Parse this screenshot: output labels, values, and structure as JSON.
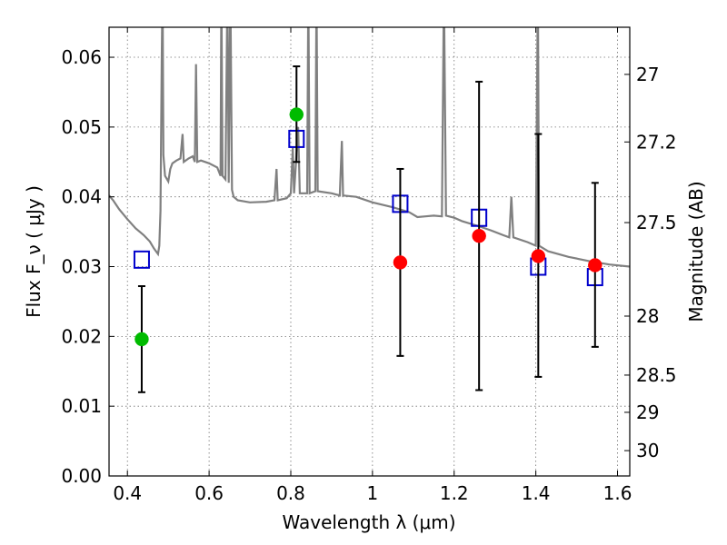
{
  "chart_data": {
    "type": "scatter",
    "title": "",
    "xlabel": "Wavelength  λ (μm)",
    "ylabel": "Flux  F_ν  ( μJy )",
    "ylabel_right": "Magnitude (AB)",
    "xlim": [
      0.355,
      1.63
    ],
    "ylim": [
      0.0,
      0.0643
    ],
    "grid": true,
    "x_ticks": [
      0.4,
      0.6,
      0.8,
      1.0,
      1.2,
      1.4,
      1.6
    ],
    "x_tick_labels": [
      "0.4",
      "0.6",
      "0.8",
      "1",
      "1.2",
      "1.4",
      "1.6"
    ],
    "y_ticks": [
      0.0,
      0.01,
      0.02,
      0.03,
      0.04,
      0.05,
      0.06
    ],
    "y_tick_labels": [
      "0.00",
      "0.01",
      "0.02",
      "0.03",
      "0.04",
      "0.05",
      "0.06"
    ],
    "right_ticks": [
      27,
      27.2,
      27.5,
      28,
      28.5,
      29,
      30
    ],
    "right_tick_labels": [
      "27",
      "27.2",
      "27.5",
      "28",
      "28.5",
      "29",
      "30"
    ],
    "model_spectrum": {
      "color": "#808080",
      "points": [
        [
          0.355,
          0.0402
        ],
        [
          0.365,
          0.0395
        ],
        [
          0.38,
          0.0382
        ],
        [
          0.4,
          0.0368
        ],
        [
          0.42,
          0.0355
        ],
        [
          0.44,
          0.0345
        ],
        [
          0.455,
          0.0336
        ],
        [
          0.465,
          0.0326
        ],
        [
          0.475,
          0.0318
        ],
        [
          0.478,
          0.033
        ],
        [
          0.481,
          0.038
        ],
        [
          0.484,
          0.06
        ],
        [
          0.486,
          0.07
        ],
        [
          0.488,
          0.046
        ],
        [
          0.492,
          0.043
        ],
        [
          0.5,
          0.0422
        ],
        [
          0.505,
          0.044
        ],
        [
          0.51,
          0.0448
        ],
        [
          0.52,
          0.0452
        ],
        [
          0.53,
          0.0455
        ],
        [
          0.535,
          0.049
        ],
        [
          0.538,
          0.045
        ],
        [
          0.55,
          0.0455
        ],
        [
          0.56,
          0.0458
        ],
        [
          0.565,
          0.045
        ],
        [
          0.568,
          0.059
        ],
        [
          0.571,
          0.045
        ],
        [
          0.58,
          0.0452
        ],
        [
          0.6,
          0.0448
        ],
        [
          0.62,
          0.0442
        ],
        [
          0.628,
          0.043
        ],
        [
          0.63,
          0.07
        ],
        [
          0.633,
          0.043
        ],
        [
          0.64,
          0.0425
        ],
        [
          0.645,
          0.07
        ],
        [
          0.648,
          0.042
        ],
        [
          0.652,
          0.07
        ],
        [
          0.656,
          0.041
        ],
        [
          0.66,
          0.04
        ],
        [
          0.67,
          0.0395
        ],
        [
          0.7,
          0.0392
        ],
        [
          0.74,
          0.0393
        ],
        [
          0.76,
          0.0395
        ],
        [
          0.765,
          0.044
        ],
        [
          0.768,
          0.0395
        ],
        [
          0.79,
          0.0398
        ],
        [
          0.8,
          0.0405
        ],
        [
          0.805,
          0.047
        ],
        [
          0.808,
          0.0405
        ],
        [
          0.818,
          0.05
        ],
        [
          0.822,
          0.0405
        ],
        [
          0.84,
          0.0405
        ],
        [
          0.843,
          0.07
        ],
        [
          0.846,
          0.0405
        ],
        [
          0.86,
          0.0408
        ],
        [
          0.863,
          0.07
        ],
        [
          0.866,
          0.0408
        ],
        [
          0.9,
          0.0405
        ],
        [
          0.92,
          0.0402
        ],
        [
          0.925,
          0.048
        ],
        [
          0.928,
          0.0402
        ],
        [
          0.96,
          0.04
        ],
        [
          1.0,
          0.0392
        ],
        [
          1.05,
          0.0385
        ],
        [
          1.09,
          0.0378
        ],
        [
          1.11,
          0.0371
        ],
        [
          1.13,
          0.0372
        ],
        [
          1.15,
          0.0373
        ],
        [
          1.17,
          0.0372
        ],
        [
          1.175,
          0.07
        ],
        [
          1.18,
          0.0373
        ],
        [
          1.2,
          0.037
        ],
        [
          1.22,
          0.0365
        ],
        [
          1.26,
          0.0358
        ],
        [
          1.29,
          0.0352
        ],
        [
          1.32,
          0.0345
        ],
        [
          1.335,
          0.0342
        ],
        [
          1.34,
          0.04
        ],
        [
          1.345,
          0.0342
        ],
        [
          1.38,
          0.0335
        ],
        [
          1.4,
          0.033
        ],
        [
          1.405,
          0.07
        ],
        [
          1.408,
          0.033
        ],
        [
          1.43,
          0.0322
        ],
        [
          1.48,
          0.0314
        ],
        [
          1.53,
          0.0308
        ],
        [
          1.58,
          0.0303
        ],
        [
          1.63,
          0.03
        ]
      ]
    },
    "series": [
      {
        "marker": "circle",
        "color": "#00bb00",
        "points": [
          {
            "x": 0.435,
            "y": 0.0196,
            "yerr_low": 0.012,
            "yerr_high": 0.0272
          },
          {
            "x": 0.814,
            "y": 0.0518,
            "yerr_low": 0.045,
            "yerr_high": 0.0587
          }
        ]
      },
      {
        "marker": "circle",
        "color": "#ff0000",
        "points": [
          {
            "x": 1.068,
            "y": 0.0306,
            "yerr_low": 0.0172,
            "yerr_high": 0.044
          },
          {
            "x": 1.261,
            "y": 0.0344,
            "yerr_low": 0.0123,
            "yerr_high": 0.0565
          },
          {
            "x": 1.406,
            "y": 0.0315,
            "yerr_low": 0.0142,
            "yerr_high": 0.049
          },
          {
            "x": 1.545,
            "y": 0.0302,
            "yerr_low": 0.0185,
            "yerr_high": 0.042
          }
        ]
      },
      {
        "marker": "square-open",
        "color": "#0000cc",
        "points": [
          {
            "x": 0.435,
            "y": 0.031
          },
          {
            "x": 0.814,
            "y": 0.0483
          },
          {
            "x": 1.068,
            "y": 0.039
          },
          {
            "x": 1.261,
            "y": 0.037
          },
          {
            "x": 1.406,
            "y": 0.03
          },
          {
            "x": 1.545,
            "y": 0.0285
          }
        ]
      }
    ]
  }
}
